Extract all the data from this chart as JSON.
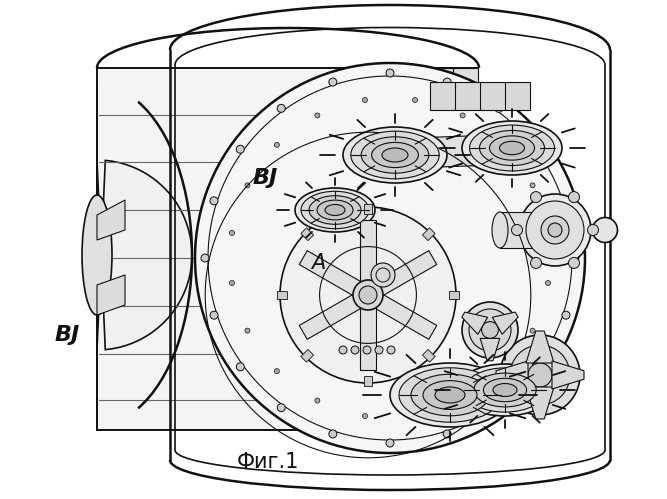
{
  "caption": "Фиг.1",
  "label_BJ_top": "BJ",
  "label_BJ_left": "BJ",
  "label_A": "A",
  "background_color": "#ffffff",
  "line_color": "#111111",
  "caption_fontsize": 15,
  "label_fontsize": 16,
  "fig_width": 6.67,
  "fig_height": 4.99,
  "dpi": 100
}
